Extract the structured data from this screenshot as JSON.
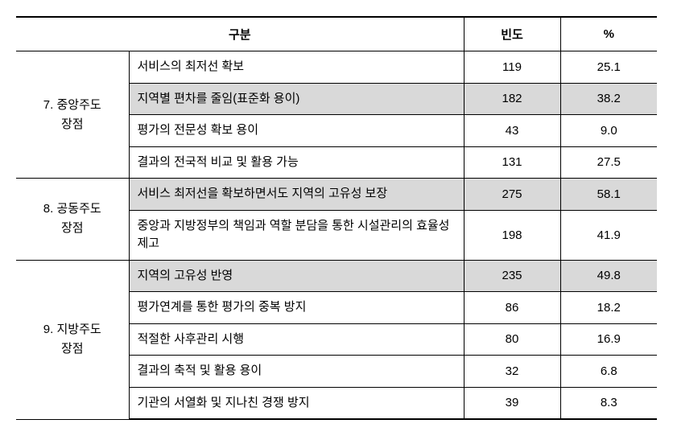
{
  "headers": {
    "category": "구분",
    "frequency": "빈도",
    "percent": "%"
  },
  "sections": [
    {
      "group_label": "7. 중앙주도\n장점",
      "rows": [
        {
          "desc": "서비스의 최저선 확보",
          "freq": "119",
          "pct": "25.1",
          "highlighted": false
        },
        {
          "desc": "지역별 편차를 줄임(표준화 용이)",
          "freq": "182",
          "pct": "38.2",
          "highlighted": true
        },
        {
          "desc": "평가의 전문성 확보 용이",
          "freq": "43",
          "pct": "9.0",
          "highlighted": false
        },
        {
          "desc": "결과의 전국적 비교 및 활용 가능",
          "freq": "131",
          "pct": "27.5",
          "highlighted": false
        }
      ]
    },
    {
      "group_label": "8. 공동주도\n장점",
      "rows": [
        {
          "desc": "서비스 최저선을 확보하면서도 지역의 고유성 보장",
          "freq": "275",
          "pct": "58.1",
          "highlighted": true
        },
        {
          "desc": "중앙과 지방정부의 책임과 역할 분담을 통한 시설관리의 효율성 제고",
          "freq": "198",
          "pct": "41.9",
          "highlighted": false
        }
      ]
    },
    {
      "group_label": "9. 지방주도\n장점",
      "rows": [
        {
          "desc": "지역의 고유성 반영",
          "freq": "235",
          "pct": "49.8",
          "highlighted": true
        },
        {
          "desc": "평가연계를 통한 평가의 중복 방지",
          "freq": "86",
          "pct": "18.2",
          "highlighted": false
        },
        {
          "desc": "적절한 사후관리 시행",
          "freq": "80",
          "pct": "16.9",
          "highlighted": false
        },
        {
          "desc": "결과의 축적 및 활용 용이",
          "freq": "32",
          "pct": "6.8",
          "highlighted": false
        },
        {
          "desc": "기관의 서열화 및 지나친 경쟁 방지",
          "freq": "39",
          "pct": "8.3",
          "highlighted": false
        }
      ]
    }
  ],
  "styling": {
    "highlight_bg": "#d9d9d9",
    "border_color": "#000000",
    "font_family": "Malgun Gothic",
    "base_fontsize": 15
  }
}
